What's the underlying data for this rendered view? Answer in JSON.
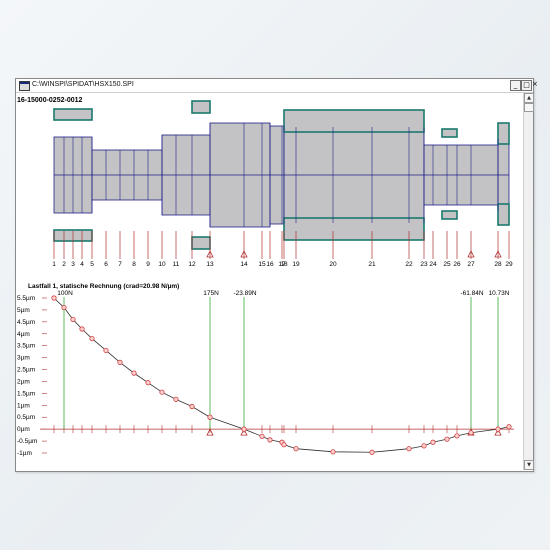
{
  "window": {
    "title": "C:\\WINSPI\\SPIDAT\\HSX150.SPI",
    "buttons": {
      "minimize": "_",
      "maximize": "□",
      "close": "×"
    }
  },
  "drawing_id": "16-15000-0252-0012",
  "node_labels": [
    "1",
    "2",
    "3",
    "4",
    "5",
    "6",
    "7",
    "8",
    "9",
    "10",
    "11",
    "12",
    "13",
    "14",
    "15",
    "16",
    "17",
    "18",
    "19",
    "20",
    "21",
    "22",
    "23",
    "24",
    "25",
    "26",
    "27",
    "28",
    "29"
  ],
  "plot": {
    "title": "Lastfall 1, statische Rechnung (crad=20.98 N/µm)",
    "y_tick_labels": [
      "5.5µm",
      "5µm",
      "4.5µm",
      "4µm",
      "3.5µm",
      "3µm",
      "2.5µm",
      "2µm",
      "1.5µm",
      "1µm",
      "0.5µm",
      "0µm",
      "-0.5µm",
      "-1µm"
    ],
    "forces": [
      "100N",
      "175N",
      "-23.89N",
      "-61.84N",
      "10.73N"
    ]
  },
  "chart_data": {
    "type": "line",
    "title": "Lastfall 1, statische Rechnung (crad=20.98 N/µm)",
    "ylabel": "",
    "ylim": [
      -1,
      5.5
    ],
    "y_unit": "µm",
    "x": [
      1,
      2,
      3,
      4,
      5,
      6,
      7,
      8,
      9,
      10,
      11,
      12,
      13,
      14,
      15,
      16,
      17,
      18,
      19,
      20,
      21,
      22,
      23,
      24,
      25,
      26,
      27,
      28,
      29
    ],
    "series": [
      {
        "values": [
          5.5,
          5.1,
          4.6,
          4.2,
          3.8,
          3.3,
          2.8,
          2.35,
          1.95,
          1.55,
          1.25,
          0.95,
          0.5,
          0.0,
          -0.3,
          -0.45,
          -0.55,
          -0.65,
          -0.82,
          -0.95,
          -0.97,
          -0.82,
          -0.7,
          -0.55,
          -0.42,
          -0.28,
          -0.15,
          0.0,
          0.1
        ]
      }
    ],
    "loads": [
      {
        "node": 2,
        "label": "100N"
      },
      {
        "node": 13,
        "label": "175N"
      },
      {
        "node": 14,
        "label": "-23.89N"
      },
      {
        "node": 27,
        "label": "-61.84N"
      },
      {
        "node": 28,
        "label": "10.73N"
      }
    ],
    "supports": [
      13,
      14,
      27,
      28
    ]
  },
  "colors": {
    "shaft_fill": "#c3c3c6",
    "outline": "#1e1e88",
    "bearing": "#1a7a6e",
    "axis": "#b03030",
    "marker": "#d04040",
    "force": "#3aaa3a",
    "curve": "#303030"
  }
}
